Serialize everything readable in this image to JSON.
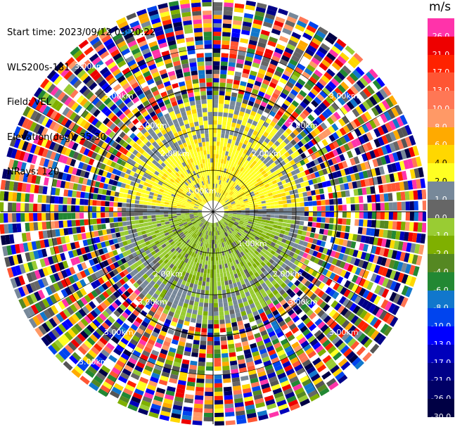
{
  "info": {
    "start_time": "Start time: 2023/09/12 03:20:22",
    "instrument": "WLS200s-181",
    "field": "Field: VEL",
    "elevation": "Elevation(deg): 35.30",
    "nrays": "NRays: 120"
  },
  "colorbar": {
    "unit": "m/s",
    "levels": [
      {
        "label": "26.0",
        "color": "#ff33aa"
      },
      {
        "label": "21.0",
        "color": "#ee0000"
      },
      {
        "label": "17.0",
        "color": "#ff2200"
      },
      {
        "label": "13.0",
        "color": "#ff5533"
      },
      {
        "label": "10.0",
        "color": "#ff7755"
      },
      {
        "label": "8.0",
        "color": "#ff9966"
      },
      {
        "label": "6.0",
        "color": "#ffaa00"
      },
      {
        "label": "4.0",
        "color": "#ffd700"
      },
      {
        "label": "2.0",
        "color": "#ffff22"
      },
      {
        "label": "1.0",
        "color": "#778899"
      },
      {
        "label": "0.0",
        "color": "#666666"
      },
      {
        "label": "-1.0",
        "color": "#99cc33"
      },
      {
        "label": "-2.0",
        "color": "#7fb000"
      },
      {
        "label": "-4.0",
        "color": "#558822"
      },
      {
        "label": "-6.0",
        "color": "#228833"
      },
      {
        "label": "-8.0",
        "color": "#1177cc"
      },
      {
        "label": "-10.0",
        "color": "#0044ee"
      },
      {
        "label": "-13.0",
        "color": "#0000ff"
      },
      {
        "label": "-17.0",
        "color": "#0000bb"
      },
      {
        "label": "-21.0",
        "color": "#000088"
      },
      {
        "label": "-26.0",
        "color": "#000066"
      },
      {
        "label": "-30.0",
        "color": "#000044"
      }
    ]
  },
  "chart_data": {
    "type": "heatmap",
    "projection": "polar PPI",
    "field": "VEL",
    "unit": "m/s",
    "rays": 120,
    "range_rings_km": [
      1.0,
      2.0,
      3.0
    ],
    "ring_labels": [
      "1.00km",
      "2.00km",
      "3.00km"
    ],
    "summary": "Inner region (< ~1.3 km): positive velocities (+2 to +4 m/s, yellow) toward the north half and negative velocities (-1 to -2 m/s, green) toward the south half; outer region is noise (all colors)."
  }
}
